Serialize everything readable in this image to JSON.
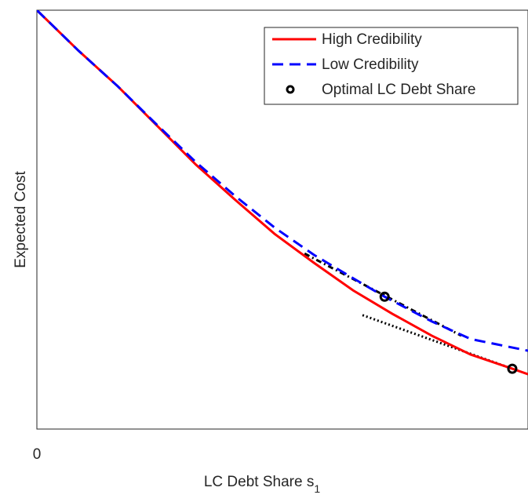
{
  "chart_data": {
    "type": "line",
    "xlabel": "LC Debt Share s",
    "xlabel_subscript": "1",
    "ylabel": "Expected Cost",
    "xlim": [
      0,
      1
    ],
    "ylim": [
      0,
      1
    ],
    "xticks": [
      0
    ],
    "yticks": [],
    "legend": "upper right",
    "series": [
      {
        "name": "High Credibility",
        "color": "#ff0000",
        "style": "solid",
        "x": [
          0,
          0.085,
          0.165,
          0.244,
          0.324,
          0.404,
          0.484,
          0.564,
          0.644,
          0.724,
          0.804,
          0.883,
          0.968,
          1.0
        ],
        "values": [
          1.0,
          0.903,
          0.818,
          0.725,
          0.631,
          0.547,
          0.466,
          0.397,
          0.331,
          0.275,
          0.223,
          0.178,
          0.144,
          0.131
        ]
      },
      {
        "name": "Low Credibility",
        "color": "#0000ff",
        "style": "dashed",
        "x": [
          0,
          0.085,
          0.165,
          0.244,
          0.324,
          0.404,
          0.484,
          0.564,
          0.644,
          0.708,
          0.804,
          0.883,
          1.0
        ],
        "values": [
          1.0,
          0.903,
          0.818,
          0.727,
          0.637,
          0.556,
          0.481,
          0.416,
          0.36,
          0.316,
          0.257,
          0.215,
          0.187
        ]
      },
      {
        "name": "Optimal LC Debt Share",
        "color": "#000000",
        "style": "marker",
        "x": [
          0.708,
          0.968
        ],
        "values": [
          0.316,
          0.144
        ]
      }
    ],
    "tangents": [
      {
        "color": "#000000",
        "style": "dashdot",
        "x": [
          0.545,
          0.864
        ],
        "values": [
          0.419,
          0.223
        ]
      },
      {
        "color": "#000000",
        "style": "dotted",
        "x": [
          0.663,
          0.968
        ],
        "values": [
          0.272,
          0.144
        ]
      }
    ]
  }
}
